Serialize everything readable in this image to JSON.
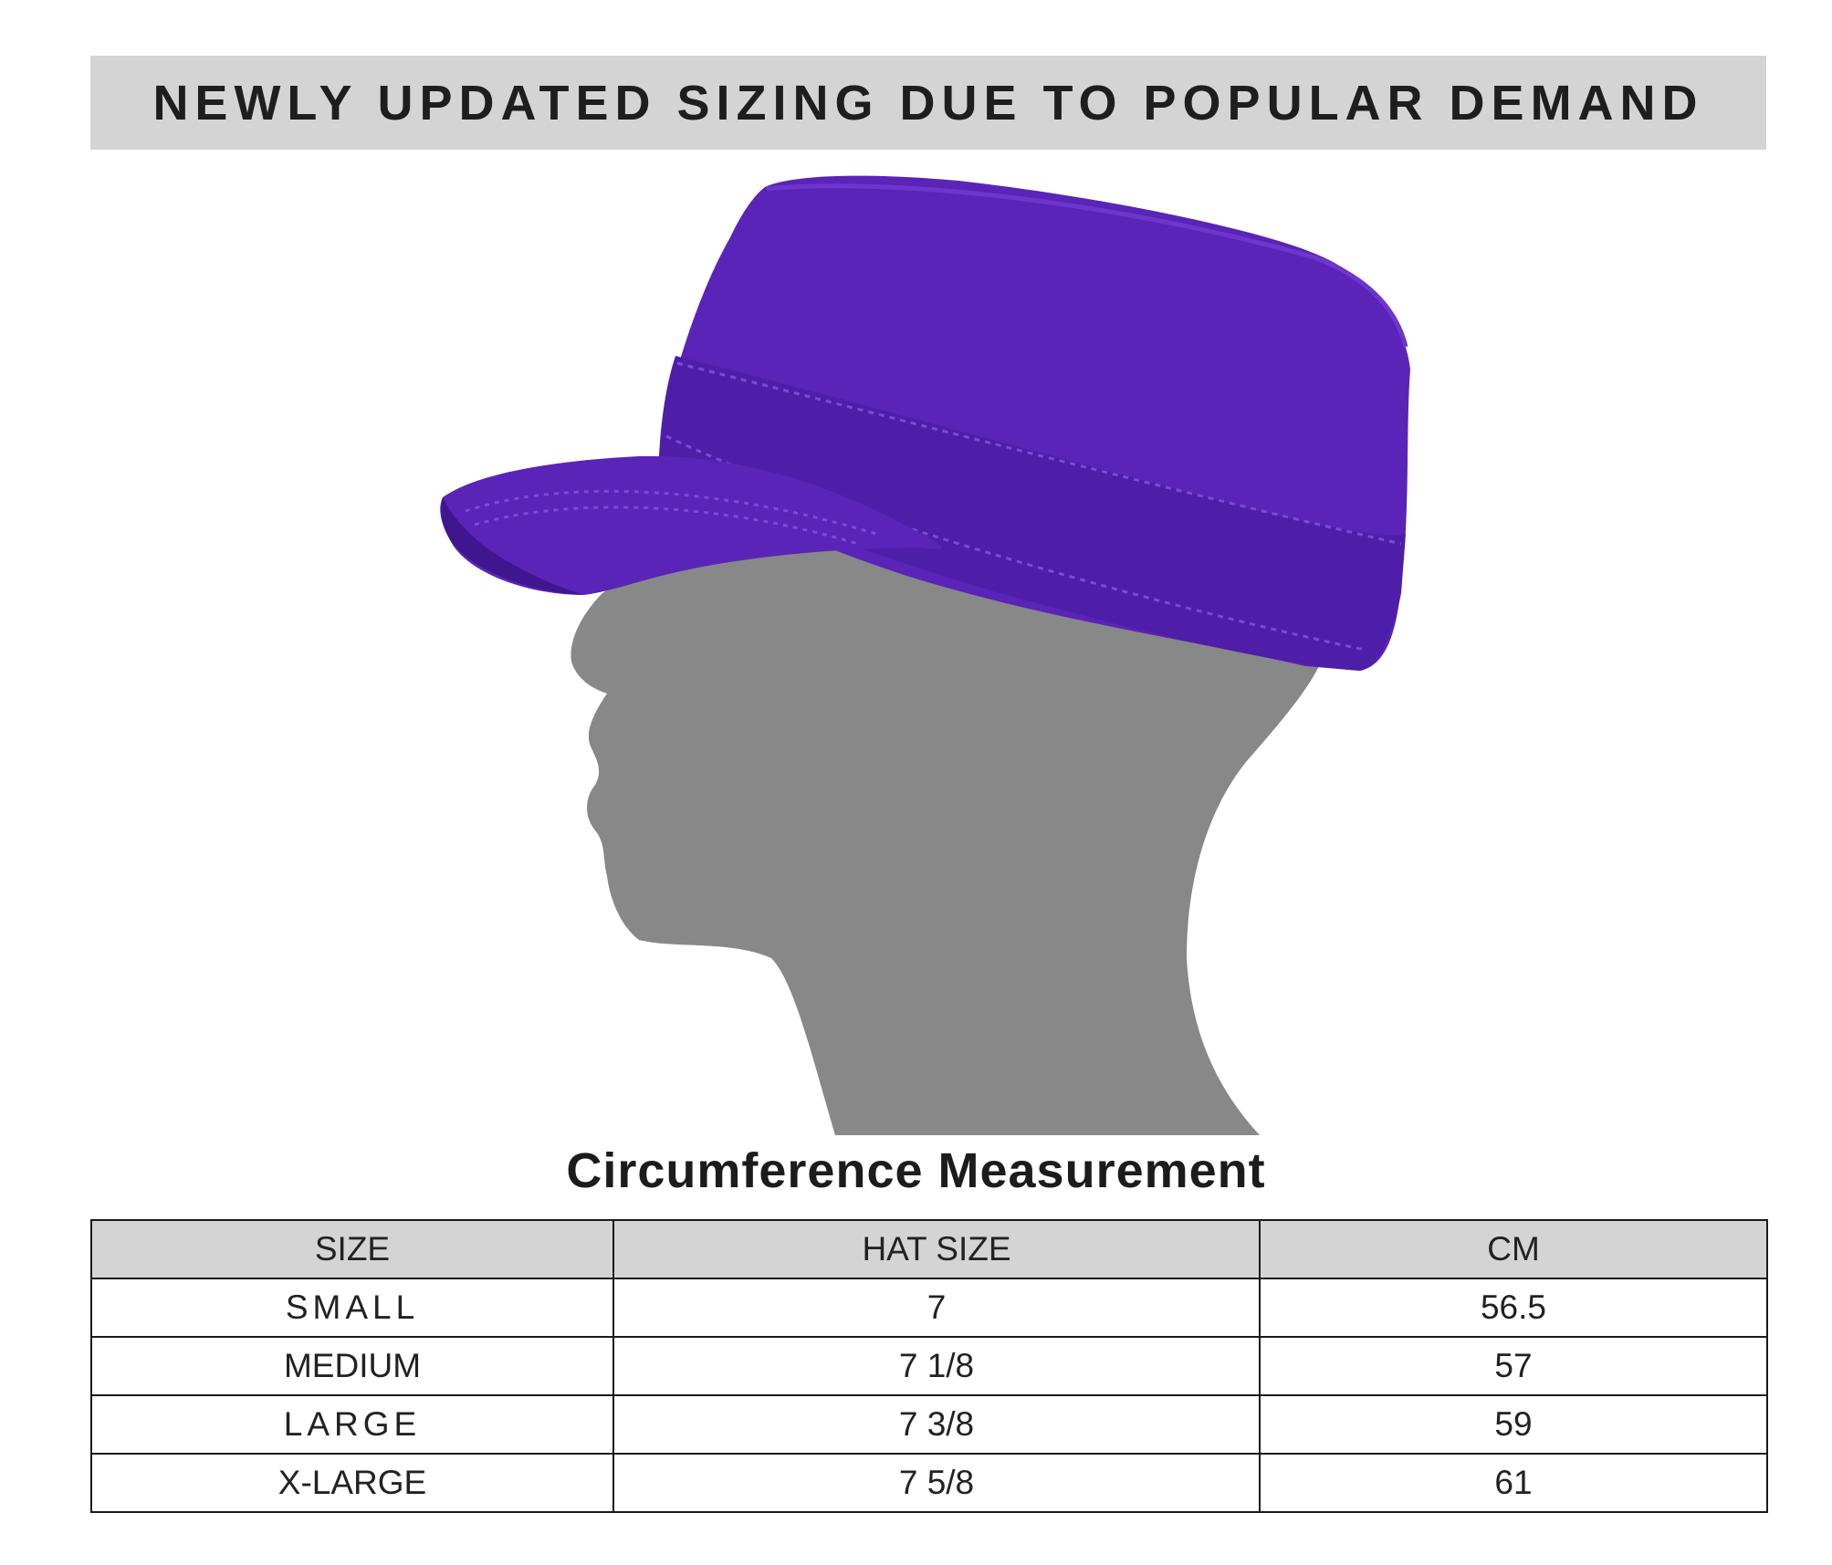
{
  "banner": {
    "text": "NEWLY UPDATED SIZING DUE TO POPULAR DEMAND",
    "background": "#d4d4d4"
  },
  "illustration": {
    "hat_color": "#5a24b8",
    "head_color": "#888888",
    "hat_icon": "cadet-cap-icon",
    "head_icon": "head-silhouette-icon"
  },
  "chart_title": "Circumference Measurement",
  "table": {
    "headers": [
      "SIZE",
      "HAT SIZE",
      "CM"
    ],
    "rows": [
      [
        "SMALL",
        "7",
        "56.5"
      ],
      [
        "MEDIUM",
        "7 1/8",
        "57"
      ],
      [
        "LARGE",
        "7 3/8",
        "59"
      ],
      [
        "X-LARGE",
        "7 5/8",
        "61"
      ]
    ],
    "header_background": "#d4d4d4"
  }
}
